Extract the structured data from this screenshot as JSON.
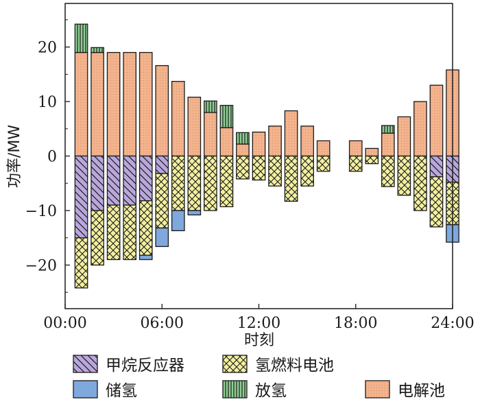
{
  "chart_data": {
    "type": "bar",
    "stacked": true,
    "xlabel": "时刻",
    "ylabel": "功率/MW",
    "x_ticks": [
      "00:00",
      "06:00",
      "12:00",
      "18:00",
      "24:00"
    ],
    "y_ticks": [
      "−20",
      "−10",
      "0",
      "10",
      "20"
    ],
    "ylim": [
      -28,
      28
    ],
    "xlim": [
      0,
      24
    ],
    "grid": false,
    "legend_position": "bottom",
    "categories": [
      1,
      2,
      3,
      4,
      5,
      6,
      7,
      8,
      9,
      10,
      11,
      12,
      13,
      14,
      15,
      16,
      17,
      18,
      19,
      20,
      21,
      22,
      23,
      24
    ],
    "series": [
      {
        "name": "电解池",
        "sign": "positive",
        "color": "#f2b38d",
        "values": [
          19,
          19,
          19,
          19,
          19,
          16.6,
          13.7,
          10.8,
          8,
          5.2,
          2.2,
          4.4,
          5.5,
          8.3,
          5.5,
          2.8,
          0,
          2.8,
          1.4,
          4.2,
          7.2,
          10,
          13,
          15.8
        ]
      },
      {
        "name": "放氢",
        "sign": "positive",
        "color": "#8fcf95",
        "values": [
          5.2,
          0.9,
          0,
          0,
          0,
          0,
          0,
          0,
          2.1,
          4.1,
          2.1,
          0,
          0,
          0,
          0,
          0,
          0,
          0,
          0,
          1.4,
          0,
          0,
          0,
          0
        ]
      },
      {
        "name": "甲烷反应器",
        "sign": "negative",
        "color": "#b9a7dc",
        "values": [
          -15,
          -10,
          -9,
          -9,
          -8.2,
          -3.2,
          0,
          0,
          0,
          0,
          0,
          0,
          0,
          0,
          0,
          0,
          0,
          0,
          0,
          0,
          0,
          0,
          -3.8,
          -4.8
        ]
      },
      {
        "name": "氢燃料电池",
        "sign": "negative",
        "color": "#f3f0a0",
        "values": [
          -9.2,
          -10,
          -10,
          -10,
          -10,
          -10,
          -10,
          -10,
          -10,
          -9.3,
          -4.2,
          -4.4,
          -5.5,
          -8.3,
          -5.5,
          -2.8,
          0,
          -2.8,
          -1.4,
          -5.6,
          -7.2,
          -10,
          -9.2,
          -7.8
        ]
      },
      {
        "name": "储氢",
        "sign": "negative",
        "color": "#7fa8dc",
        "values": [
          0,
          0,
          0,
          0,
          -0.8,
          -3.4,
          -3.7,
          -0.8,
          0,
          0,
          0,
          0,
          0,
          0,
          0,
          0,
          0,
          0,
          0,
          0,
          0,
          0,
          0,
          -3.2
        ]
      }
    ]
  },
  "legend": {
    "items": [
      {
        "key": "ch4",
        "label": "甲烷反应器"
      },
      {
        "key": "fc",
        "label": "氢燃料电池"
      },
      {
        "key": "store",
        "label": "储氢"
      },
      {
        "key": "release",
        "label": "放氢"
      },
      {
        "key": "elec",
        "label": "电解池"
      }
    ]
  }
}
